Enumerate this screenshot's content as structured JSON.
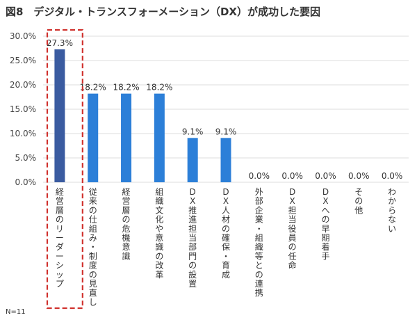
{
  "figure_title": "図8　デジタル・トランスフォーメーション（DX）が成功した要因",
  "note": "N=11",
  "colors": {
    "highlight": "#3a5ba0",
    "bar": "#2c7fd8",
    "dash": "#d0312d",
    "grid": "#dddddd"
  },
  "chart_data": {
    "type": "bar",
    "title": "デジタル・トランスフォーメーション（DX）が成功した要因",
    "xlabel": "",
    "ylabel": "",
    "ylim": [
      0,
      30
    ],
    "yticks": [
      "0.0%",
      "5.0%",
      "10.0%",
      "15.0%",
      "20.0%",
      "25.0%",
      "30.0%"
    ],
    "grid": true,
    "highlight_index": 0,
    "categories": [
      "経営層のリーダーシップ",
      "従来の仕組み・制度の見直し",
      "経営層の危機意識",
      "組織文化や意識の改革",
      "DX推進担当部門の設置",
      "DX人材の確保・育成",
      "外部企業・組織等との連携",
      "DX担当役員の任命",
      "DXへの早期着手",
      "その他",
      "わからない"
    ],
    "values": [
      27.3,
      18.2,
      18.2,
      18.2,
      9.1,
      9.1,
      0.0,
      0.0,
      0.0,
      0.0,
      0.0
    ],
    "value_labels": [
      "27.3%",
      "18.2%",
      "18.2%",
      "18.2%",
      "9.1%",
      "9.1%",
      "0.0%",
      "0.0%",
      "0.0%",
      "0.0%",
      "0.0%"
    ]
  }
}
